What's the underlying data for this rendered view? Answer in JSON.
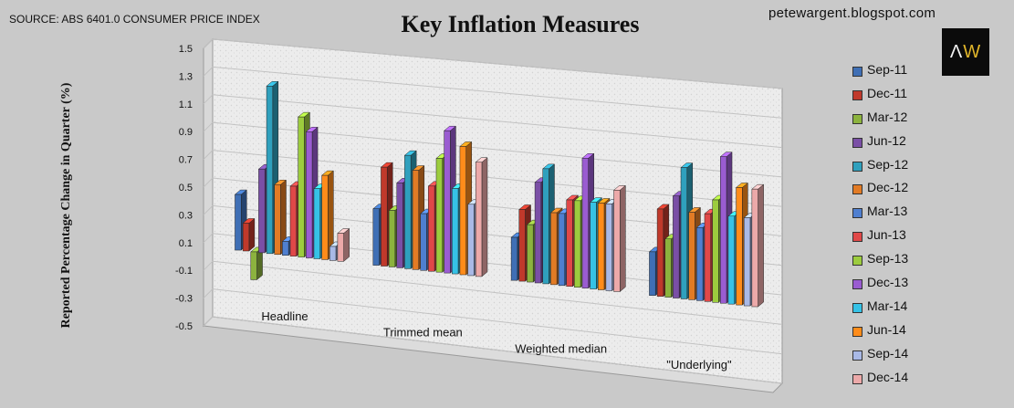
{
  "header": {
    "source": "SOURCE: ABS 6401.0 CONSUMER PRICE INDEX",
    "title": "Key Inflation Measures",
    "blog": "petewargent.blogspot.com",
    "logo": {
      "left": "Λ",
      "right": "W"
    }
  },
  "colors": {
    "Sep-11": "#3f6fb5",
    "Dec-11": "#c0392b",
    "Mar-12": "#8cb33e",
    "Jun-12": "#7a4fa6",
    "Sep-12": "#2fa0bd",
    "Dec-12": "#e27b25",
    "Mar-13": "#4f7fd0",
    "Jun-13": "#e04848",
    "Sep-13": "#9ccc3e",
    "Dec-13": "#9a5cd1",
    "Mar-14": "#36c2e6",
    "Jun-14": "#ff8c1a",
    "Sep-14": "#a9b9e6",
    "Dec-14": "#eca9a9",
    "background": "#c9c9c9",
    "wall": "#ececec",
    "floor": "#dcdcdc"
  },
  "chart_data": {
    "type": "bar",
    "title": "Key Inflation Measures",
    "ylabel": "Reported Percentage Change in Quarter (%)",
    "xlabel": "",
    "ylim": [
      -0.5,
      1.5
    ],
    "yticks": [
      "1.5",
      "1.3",
      "1.1",
      "0.9",
      "0.7",
      "0.5",
      "0.3",
      "0.1",
      "-0.1",
      "-0.3",
      "-0.5"
    ],
    "grid": true,
    "legend_position": "right",
    "categories": [
      "Headline",
      "Trimmed mean",
      "Weighted median",
      "\"Underlying\""
    ],
    "series": [
      {
        "name": "Sep-11",
        "values": [
          0.4,
          0.4,
          0.3,
          0.3
        ]
      },
      {
        "name": "Dec-11",
        "values": [
          0.2,
          0.7,
          0.5,
          0.6
        ]
      },
      {
        "name": "Mar-12",
        "values": [
          -0.2,
          0.4,
          0.4,
          0.4
        ]
      },
      {
        "name": "Jun-12",
        "values": [
          0.6,
          0.6,
          0.7,
          0.7
        ]
      },
      {
        "name": "Sep-12",
        "values": [
          1.2,
          0.8,
          0.8,
          0.9
        ]
      },
      {
        "name": "Dec-12",
        "values": [
          0.5,
          0.7,
          0.5,
          0.6
        ]
      },
      {
        "name": "Mar-13",
        "values": [
          0.1,
          0.4,
          0.5,
          0.5
        ]
      },
      {
        "name": "Jun-13",
        "values": [
          0.5,
          0.6,
          0.6,
          0.6
        ]
      },
      {
        "name": "Sep-13",
        "values": [
          1.0,
          0.8,
          0.6,
          0.7
        ]
      },
      {
        "name": "Dec-13",
        "values": [
          0.9,
          1.0,
          0.9,
          1.0
        ]
      },
      {
        "name": "Mar-14",
        "values": [
          0.5,
          0.6,
          0.6,
          0.6
        ]
      },
      {
        "name": "Jun-14",
        "values": [
          0.6,
          0.9,
          0.6,
          0.8
        ]
      },
      {
        "name": "Sep-14",
        "values": [
          0.1,
          0.5,
          0.6,
          0.6
        ]
      },
      {
        "name": "Dec-14",
        "values": [
          0.2,
          0.8,
          0.7,
          0.8
        ]
      }
    ]
  }
}
